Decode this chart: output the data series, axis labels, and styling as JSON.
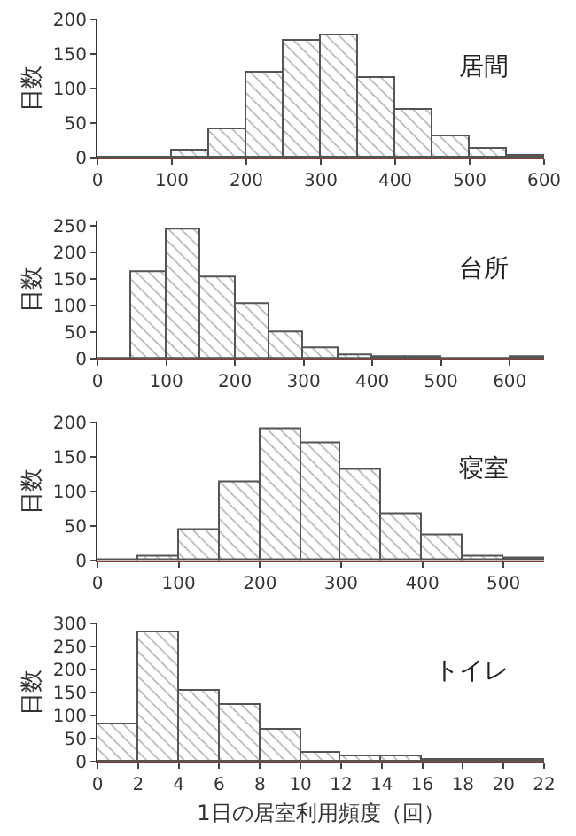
{
  "chart_data": [
    {
      "type": "histogram",
      "title": "居間",
      "ylabel": "日数",
      "bins": [
        0,
        50,
        100,
        150,
        200,
        250,
        300,
        350,
        400,
        450,
        500,
        550,
        600
      ],
      "values": [
        0,
        0,
        10,
        42,
        122,
        170,
        178,
        116,
        70,
        30,
        14,
        2
      ],
      "color": "#555555",
      "xlim": [
        0,
        600
      ],
      "xticks": [
        0,
        100,
        200,
        300,
        400,
        500,
        600
      ],
      "ylim": [
        0,
        200
      ],
      "yticks": [
        0,
        50,
        100,
        150,
        200
      ]
    },
    {
      "type": "histogram",
      "title": "台所",
      "ylabel": "日数",
      "bins": [
        0,
        50,
        100,
        150,
        200,
        250,
        300,
        350,
        400,
        450,
        500,
        550,
        600,
        650
      ],
      "values": [
        0,
        165,
        245,
        155,
        103,
        50,
        20,
        7,
        3,
        2,
        0,
        0,
        2
      ],
      "color": "#555555",
      "xlim": [
        0,
        650
      ],
      "xticks": [
        0,
        100,
        200,
        300,
        400,
        500,
        600
      ],
      "ylim": [
        0,
        260
      ],
      "yticks": [
        0,
        50,
        100,
        150,
        200,
        250
      ]
    },
    {
      "type": "histogram",
      "title": "寝室",
      "ylabel": "日数",
      "bins": [
        0,
        50,
        100,
        150,
        200,
        250,
        300,
        350,
        400,
        450,
        500,
        550
      ],
      "values": [
        0,
        5,
        43,
        112,
        190,
        170,
        130,
        67,
        35,
        5,
        2
      ],
      "color": "#555555",
      "xlim": [
        0,
        550
      ],
      "xticks": [
        0,
        100,
        200,
        300,
        400,
        500
      ],
      "ylim": [
        0,
        200
      ],
      "yticks": [
        0,
        50,
        100,
        150,
        200
      ]
    },
    {
      "type": "histogram",
      "title": "トイレ",
      "ylabel": "日数",
      "xlabel": "1日の居室利用頻度（回）",
      "bins": [
        0,
        2,
        4,
        6,
        8,
        10,
        12,
        14,
        16,
        18,
        20,
        22
      ],
      "values": [
        80,
        280,
        155,
        122,
        70,
        20,
        12,
        12,
        3,
        3,
        3
      ],
      "color": "#555555",
      "xlim": [
        0,
        22
      ],
      "xticks": [
        0,
        2,
        4,
        6,
        8,
        10,
        12,
        14,
        16,
        18,
        20,
        22
      ],
      "ylim": [
        0,
        300
      ],
      "yticks": [
        0,
        50,
        100,
        150,
        200,
        250,
        300
      ]
    }
  ]
}
